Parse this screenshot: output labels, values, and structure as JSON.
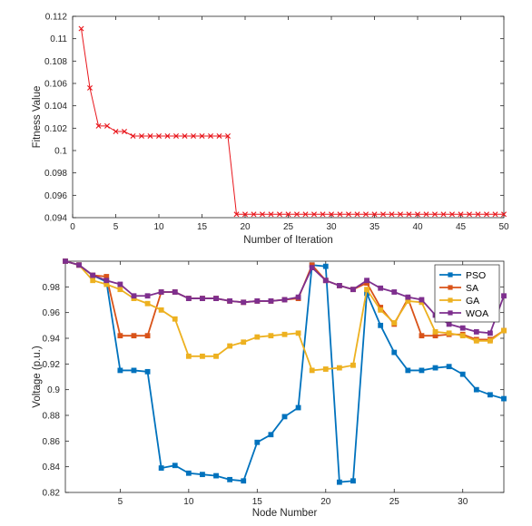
{
  "chart_data": [
    {
      "type": "line",
      "xlabel": "Number of Iteration",
      "ylabel": "Fitness Value",
      "xlim": [
        0,
        50
      ],
      "ylim": [
        0.094,
        0.112
      ],
      "xticks": [
        0,
        5,
        10,
        15,
        20,
        25,
        30,
        35,
        40,
        45,
        50
      ],
      "yticks": [
        0.094,
        0.096,
        0.098,
        0.1,
        0.102,
        0.104,
        0.106,
        0.108,
        0.11,
        0.112
      ],
      "ytick_labels": [
        "0.094",
        "0.096",
        "0.098",
        "0.1",
        "0.102",
        "0.104",
        "0.106",
        "0.108",
        "0.11",
        "0.112"
      ],
      "grid": false,
      "color": "#e8151b",
      "marker": "x",
      "x": [
        1,
        2,
        3,
        4,
        5,
        6,
        7,
        8,
        9,
        10,
        11,
        12,
        13,
        14,
        15,
        16,
        17,
        18,
        19,
        20,
        21,
        22,
        23,
        24,
        25,
        26,
        27,
        28,
        29,
        30,
        31,
        32,
        33,
        34,
        35,
        36,
        37,
        38,
        39,
        40,
        41,
        42,
        43,
        44,
        45,
        46,
        47,
        48,
        49,
        50
      ],
      "y": [
        0.1109,
        0.1056,
        0.1022,
        0.1022,
        0.1017,
        0.1017,
        0.1013,
        0.1013,
        0.1013,
        0.1013,
        0.1013,
        0.1013,
        0.1013,
        0.1013,
        0.1013,
        0.1013,
        0.1013,
        0.1013,
        0.0943,
        0.0943,
        0.0943,
        0.0943,
        0.0943,
        0.0943,
        0.0943,
        0.0943,
        0.0943,
        0.0943,
        0.0943,
        0.0943,
        0.0943,
        0.0943,
        0.0943,
        0.0943,
        0.0943,
        0.0943,
        0.0943,
        0.0943,
        0.0943,
        0.0943,
        0.0943,
        0.0943,
        0.0943,
        0.0943,
        0.0943,
        0.0943,
        0.0943,
        0.0943,
        0.0943,
        0.0943
      ]
    },
    {
      "type": "line",
      "xlabel": "Node Number",
      "ylabel": "Voltage (p.u.)",
      "xlim": [
        1,
        33
      ],
      "ylim": [
        0.82,
        1.0
      ],
      "xticks": [
        5,
        10,
        15,
        20,
        25,
        30
      ],
      "yticks": [
        0.82,
        0.84,
        0.86,
        0.88,
        0.9,
        0.92,
        0.94,
        0.96,
        0.98
      ],
      "ytick_labels": [
        "0.82",
        "0.84",
        "0.86",
        "0.88",
        "0.9",
        "0.92",
        "0.94",
        "0.96",
        "0.98"
      ],
      "grid": false,
      "legend": "top-right",
      "x": [
        1,
        2,
        3,
        4,
        5,
        6,
        7,
        8,
        9,
        10,
        11,
        12,
        13,
        14,
        15,
        16,
        17,
        18,
        19,
        20,
        21,
        22,
        23,
        24,
        25,
        26,
        27,
        28,
        29,
        30,
        31,
        32,
        33
      ],
      "series": [
        {
          "name": "PSO",
          "color": "#0072bd",
          "values": [
            1.0,
            0.997,
            0.989,
            0.984,
            0.915,
            0.915,
            0.914,
            0.839,
            0.841,
            0.835,
            0.834,
            0.833,
            0.83,
            0.829,
            0.859,
            0.865,
            0.879,
            0.886,
            0.997,
            0.996,
            0.828,
            0.829,
            0.975,
            0.95,
            0.929,
            0.915,
            0.915,
            0.917,
            0.918,
            0.912,
            0.9,
            0.896,
            0.893
          ]
        },
        {
          "name": "SA",
          "color": "#d95319",
          "values": [
            1.0,
            0.997,
            0.989,
            0.988,
            0.942,
            0.942,
            0.942,
            0.976,
            0.976,
            0.971,
            0.971,
            0.971,
            0.969,
            0.968,
            0.969,
            0.969,
            0.97,
            0.971,
            0.997,
            0.985,
            0.981,
            0.978,
            0.983,
            0.964,
            0.951,
            0.971,
            0.942,
            0.942,
            0.943,
            0.943,
            0.939,
            0.939,
            0.946
          ]
        },
        {
          "name": "GA",
          "color": "#edb120",
          "values": [
            1.0,
            0.997,
            0.985,
            0.982,
            0.978,
            0.971,
            0.967,
            0.962,
            0.955,
            0.926,
            0.926,
            0.926,
            0.934,
            0.937,
            0.941,
            0.942,
            0.943,
            0.944,
            0.915,
            0.916,
            0.917,
            0.919,
            0.978,
            0.962,
            0.952,
            0.969,
            0.968,
            0.945,
            0.944,
            0.942,
            0.938,
            0.938,
            0.946
          ]
        },
        {
          "name": "WOA",
          "color": "#7e2f8e",
          "values": [
            1.0,
            0.997,
            0.989,
            0.985,
            0.982,
            0.973,
            0.973,
            0.976,
            0.976,
            0.971,
            0.971,
            0.971,
            0.969,
            0.968,
            0.969,
            0.969,
            0.97,
            0.972,
            0.995,
            0.985,
            0.981,
            0.978,
            0.985,
            0.979,
            0.976,
            0.972,
            0.97,
            0.958,
            0.951,
            0.948,
            0.945,
            0.944,
            0.973
          ]
        }
      ]
    }
  ]
}
